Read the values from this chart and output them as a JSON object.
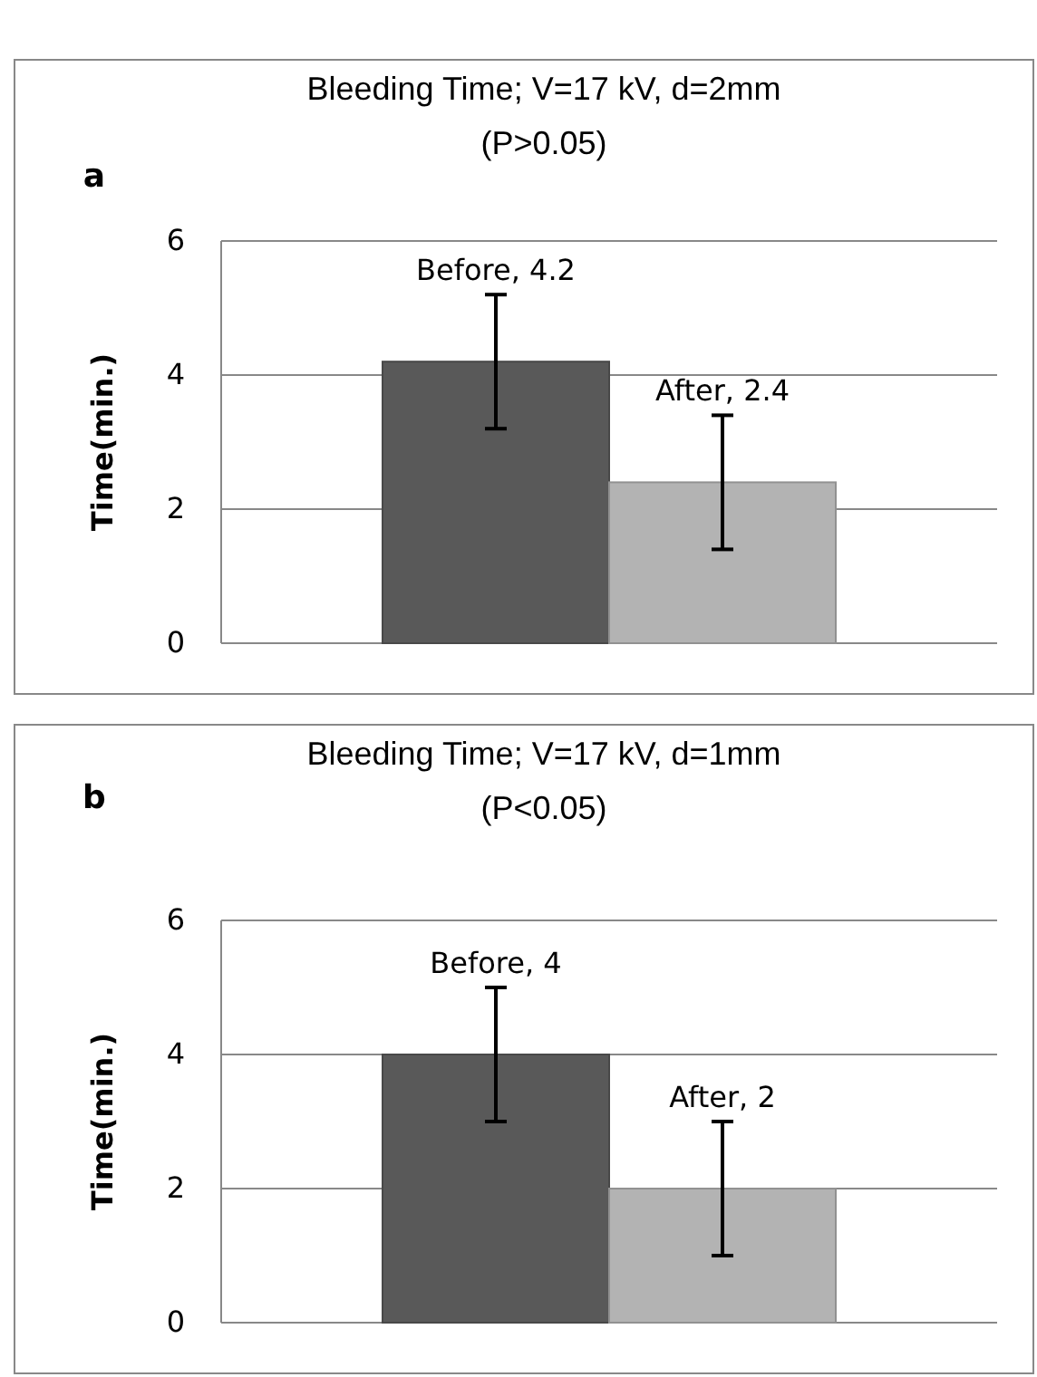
{
  "chart_data": [
    {
      "type": "bar",
      "title": "Bleeding Time; V=17 kV, d=2mm",
      "subtitle": "(P>0.05)",
      "ylabel": "Time(min.)",
      "annotations": [
        "a"
      ],
      "categories": [
        null
      ],
      "series": [
        {
          "color": "#595959",
          "values": [
            4.2
          ],
          "errors": [
            1
          ],
          "value_labels": [
            "Before, 4.2"
          ]
        },
        {
          "color": "#b3b3b3",
          "values": [
            2.4
          ],
          "errors": [
            1
          ],
          "value_labels": [
            "After, 2.4"
          ]
        }
      ],
      "ylim": [
        0,
        6
      ],
      "yticks": [
        0,
        2,
        4,
        6
      ],
      "grid": "y"
    },
    {
      "type": "bar",
      "title": "Bleeding Time; V=17 kV, d=1mm",
      "subtitle": "(P<0.05)",
      "ylabel": "Time(min.)",
      "annotations": [
        "b"
      ],
      "categories": [
        null
      ],
      "series": [
        {
          "color": "#595959",
          "values": [
            4
          ],
          "errors": [
            1
          ],
          "value_labels": [
            "Before, 4"
          ]
        },
        {
          "color": "#b3b3b3",
          "values": [
            2
          ],
          "errors": [
            1
          ],
          "value_labels": [
            "After, 2"
          ]
        }
      ],
      "ylim": [
        0,
        6
      ],
      "yticks": [
        0,
        2,
        4,
        6
      ],
      "grid": "y"
    }
  ]
}
